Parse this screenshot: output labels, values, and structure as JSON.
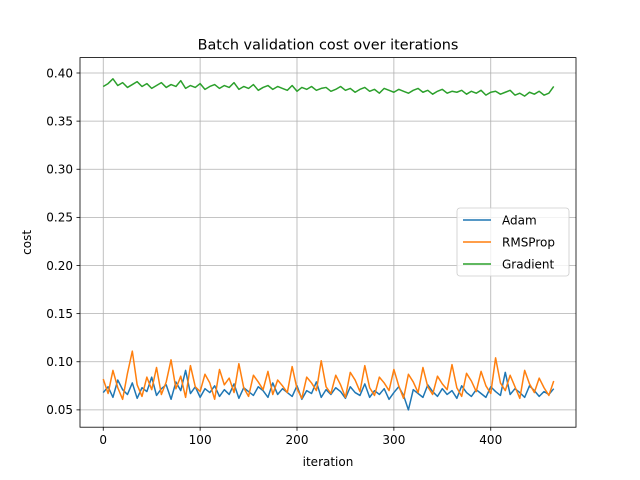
{
  "chart_data": {
    "type": "line",
    "title": "Batch validation cost over iterations",
    "xlabel": "iteration",
    "ylabel": "cost",
    "xlim": [
      -24,
      488
    ],
    "ylim": [
      0.032,
      0.416
    ],
    "xticks": [
      0,
      100,
      200,
      300,
      400
    ],
    "xtick_labels": [
      "0",
      "100",
      "200",
      "300",
      "400"
    ],
    "yticks": [
      0.05,
      0.1,
      0.15,
      0.2,
      0.25,
      0.3,
      0.35,
      0.4
    ],
    "ytick_labels": [
      "0.05",
      "0.10",
      "0.15",
      "0.20",
      "0.25",
      "0.30",
      "0.35",
      "0.40"
    ],
    "grid": true,
    "legend_position": "center-right",
    "series": [
      {
        "name": "Adam",
        "color": "#1f77b4",
        "x_start": 0,
        "x_step": 5,
        "values": [
          0.068,
          0.074,
          0.063,
          0.081,
          0.071,
          0.066,
          0.078,
          0.062,
          0.073,
          0.069,
          0.084,
          0.065,
          0.072,
          0.076,
          0.061,
          0.079,
          0.07,
          0.091,
          0.067,
          0.074,
          0.063,
          0.072,
          0.068,
          0.075,
          0.064,
          0.071,
          0.066,
          0.077,
          0.062,
          0.073,
          0.069,
          0.065,
          0.074,
          0.07,
          0.063,
          0.078,
          0.066,
          0.072,
          0.068,
          0.064,
          0.075,
          0.061,
          0.07,
          0.067,
          0.079,
          0.063,
          0.071,
          0.066,
          0.073,
          0.069,
          0.062,
          0.074,
          0.068,
          0.065,
          0.077,
          0.063,
          0.07,
          0.066,
          0.072,
          0.061,
          0.068,
          0.074,
          0.065,
          0.05,
          0.071,
          0.067,
          0.063,
          0.076,
          0.069,
          0.064,
          0.072,
          0.066,
          0.07,
          0.062,
          0.075,
          0.068,
          0.064,
          0.071,
          0.067,
          0.063,
          0.074,
          0.069,
          0.065,
          0.089,
          0.066,
          0.072,
          0.068,
          0.063,
          0.075,
          0.07,
          0.064,
          0.069,
          0.066,
          0.072
        ]
      },
      {
        "name": "RMSProp",
        "color": "#ff7f0e",
        "x_start": 0,
        "x_step": 5,
        "values": [
          0.082,
          0.067,
          0.091,
          0.073,
          0.061,
          0.088,
          0.111,
          0.076,
          0.064,
          0.084,
          0.071,
          0.094,
          0.066,
          0.079,
          0.102,
          0.072,
          0.085,
          0.063,
          0.096,
          0.074,
          0.069,
          0.087,
          0.078,
          0.061,
          0.092,
          0.076,
          0.083,
          0.068,
          0.098,
          0.073,
          0.064,
          0.086,
          0.079,
          0.071,
          0.09,
          0.066,
          0.081,
          0.075,
          0.068,
          0.095,
          0.072,
          0.062,
          0.084,
          0.078,
          0.07,
          0.101,
          0.074,
          0.067,
          0.086,
          0.076,
          0.063,
          0.089,
          0.081,
          0.069,
          0.096,
          0.073,
          0.065,
          0.084,
          0.078,
          0.07,
          0.092,
          0.075,
          0.062,
          0.087,
          0.079,
          0.068,
          0.094,
          0.074,
          0.066,
          0.085,
          0.077,
          0.071,
          0.097,
          0.073,
          0.064,
          0.088,
          0.08,
          0.069,
          0.09,
          0.075,
          0.067,
          0.104,
          0.078,
          0.07,
          0.086,
          0.074,
          0.062,
          0.091,
          0.077,
          0.068,
          0.083,
          0.073,
          0.065,
          0.08
        ]
      },
      {
        "name": "Gradient",
        "color": "#2ca02c",
        "x_start": 0,
        "x_step": 5,
        "values": [
          0.386,
          0.389,
          0.394,
          0.387,
          0.39,
          0.385,
          0.388,
          0.391,
          0.386,
          0.389,
          0.384,
          0.387,
          0.39,
          0.385,
          0.388,
          0.386,
          0.392,
          0.384,
          0.387,
          0.385,
          0.389,
          0.383,
          0.386,
          0.388,
          0.384,
          0.387,
          0.385,
          0.39,
          0.383,
          0.386,
          0.384,
          0.388,
          0.382,
          0.385,
          0.387,
          0.383,
          0.386,
          0.384,
          0.382,
          0.387,
          0.381,
          0.385,
          0.383,
          0.386,
          0.382,
          0.384,
          0.385,
          0.381,
          0.383,
          0.386,
          0.382,
          0.384,
          0.38,
          0.383,
          0.385,
          0.381,
          0.383,
          0.379,
          0.384,
          0.382,
          0.38,
          0.383,
          0.381,
          0.379,
          0.382,
          0.384,
          0.38,
          0.382,
          0.378,
          0.381,
          0.383,
          0.379,
          0.381,
          0.38,
          0.382,
          0.378,
          0.381,
          0.379,
          0.382,
          0.377,
          0.38,
          0.381,
          0.378,
          0.38,
          0.382,
          0.377,
          0.379,
          0.376,
          0.38,
          0.378,
          0.381,
          0.377,
          0.379,
          0.386
        ]
      }
    ]
  }
}
